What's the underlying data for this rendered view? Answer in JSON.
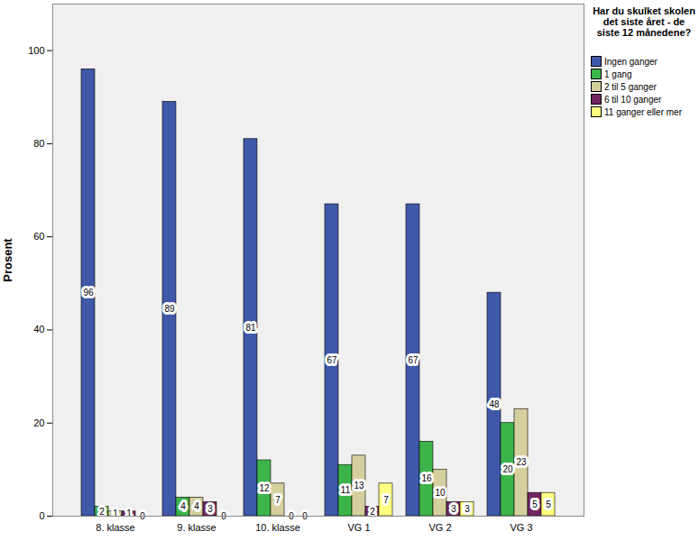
{
  "chart_data": {
    "type": "bar",
    "title": "Har du skulket skolen det siste året - de siste 12 månedene?",
    "y_label": "Prosent",
    "categories": [
      "8. klasse",
      "9. klasse",
      "10. klasse",
      "VG 1",
      "VG 2",
      "VG 3"
    ],
    "series": [
      {
        "name": "Ingen ganger",
        "color": "#3f58a8",
        "values": [
          96,
          89,
          81,
          67,
          67,
          48
        ]
      },
      {
        "name": "1 gang",
        "color": "#3cb44a",
        "values": [
          2,
          4,
          12,
          11,
          16,
          20
        ]
      },
      {
        "name": "2 til 5 ganger",
        "color": "#d5cf9e",
        "values": [
          1,
          4,
          7,
          13,
          10,
          23
        ]
      },
      {
        "name": "6 til 10 ganger",
        "color": "#74275f",
        "values": [
          1,
          3,
          0,
          2,
          3,
          5
        ]
      },
      {
        "name": "11 ganger eller mer",
        "color": "#ffff80",
        "values": [
          0,
          0,
          0,
          7,
          3,
          5
        ]
      }
    ],
    "ylim": [
      0,
      110
    ],
    "yticks": [
      0,
      20,
      40,
      60,
      80,
      100
    ],
    "grid": false,
    "data_labels": true,
    "legend": "right"
  }
}
